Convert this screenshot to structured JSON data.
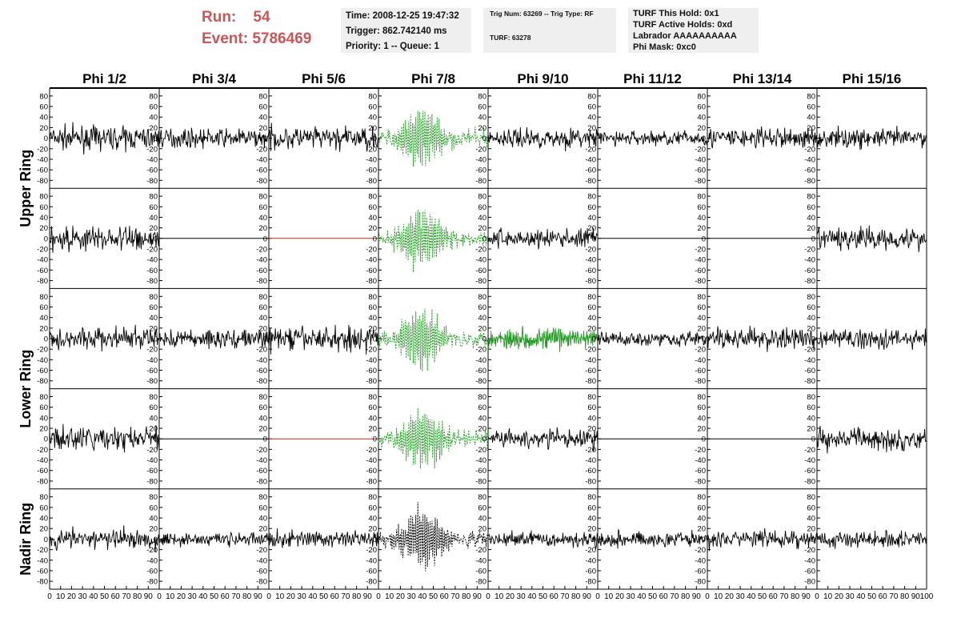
{
  "header": {
    "run_label": "Run:",
    "run_value": "54",
    "event_label": "Event:",
    "event_value": "5786469",
    "time_line": "Time: 2008-12-25 19:47:32",
    "trigger_line": "Trigger: 862.742140 ms",
    "priority_line": "Priority: 1 -- Queue: 1",
    "trig_line": "Trig Num: 63269 -- Trig Type: RF",
    "turf_line": "TURF: 63278",
    "turf_hold_line": "TURF This Hold: 0x1",
    "turf_active_line": "TURF Active Holds: 0xd",
    "labrador_line": "Labrador AAAAAAAAAA",
    "phi_mask_line": "Phi Mask: 0xc0"
  },
  "colors": {
    "run_text": "#cc5555",
    "info_bg": "#efefef",
    "trace_default": "#000000",
    "trace_green": "#229922",
    "trace_red": "#cc2222"
  },
  "chart_data": {
    "type": "line",
    "columns": [
      "Phi 1/2",
      "Phi 3/4",
      "Phi 5/6",
      "Phi 7/8",
      "Phi 9/10",
      "Phi 11/12",
      "Phi 13/14",
      "Phi 15/16"
    ],
    "rows": [
      "Upper Ring",
      "Lower Ring",
      "Nadir Ring"
    ],
    "yticks": [
      "80",
      "60",
      "40",
      "20",
      "0",
      "-20",
      "-40",
      "-60",
      "-80"
    ],
    "ytick_values": [
      80,
      60,
      40,
      20,
      0,
      -20,
      -40,
      -60,
      -80
    ],
    "xticks": [
      "0",
      "10",
      "20",
      "30",
      "40",
      "50",
      "60",
      "70",
      "80",
      "90",
      "100"
    ],
    "xtick_values": [
      0,
      10,
      20,
      30,
      40,
      50,
      60,
      70,
      80,
      90,
      100
    ],
    "xlim": [
      0,
      100
    ],
    "ylim": [
      -95,
      95
    ],
    "panels_rows": 5,
    "panels_cols": 8,
    "panels": [
      [
        "noise",
        "noise",
        "noise",
        "pulse",
        "noise",
        "noise",
        "noise",
        "noise"
      ],
      [
        "noise",
        "flat",
        "flat",
        "pulse",
        "noise",
        "flat",
        "flat",
        "noise"
      ],
      [
        "noise",
        "noise",
        "noise",
        "pulse",
        "dense",
        "noise",
        "noise",
        "noise"
      ],
      [
        "noise",
        "flat",
        "flat",
        "pulse",
        "noise",
        "flat",
        "flat",
        "noise"
      ],
      [
        "noise",
        "noise",
        "noise",
        "pulse",
        "noise",
        "noise",
        "noise",
        "noise"
      ]
    ],
    "panel_colors": [
      [
        "black",
        "black",
        "black",
        "green",
        "black",
        "black",
        "black",
        "black"
      ],
      [
        "black",
        "black",
        "red",
        "green",
        "black",
        "black",
        "black",
        "black"
      ],
      [
        "black",
        "black",
        "black",
        "green",
        "green",
        "black",
        "black",
        "black"
      ],
      [
        "black",
        "black",
        "red",
        "green",
        "black",
        "black",
        "black",
        "black"
      ],
      [
        "black",
        "black",
        "black",
        "black",
        "black",
        "black",
        "black",
        "black"
      ]
    ],
    "panel_dashed": [
      [
        false,
        false,
        false,
        true,
        false,
        false,
        false,
        false
      ],
      [
        false,
        false,
        false,
        true,
        false,
        false,
        false,
        false
      ],
      [
        false,
        false,
        false,
        true,
        false,
        false,
        false,
        false
      ],
      [
        false,
        false,
        false,
        true,
        false,
        false,
        false,
        false
      ],
      [
        false,
        false,
        false,
        true,
        false,
        false,
        false,
        false
      ]
    ],
    "panel_amplitude": [
      [
        15,
        12,
        15,
        0,
        13,
        10,
        14,
        13
      ],
      [
        17,
        0,
        0,
        0,
        13,
        0,
        0,
        15
      ],
      [
        15,
        13,
        16,
        0,
        14,
        10,
        14,
        13
      ],
      [
        16,
        0,
        0,
        0,
        13,
        0,
        0,
        15
      ],
      [
        14,
        9,
        11,
        0,
        10,
        10,
        12,
        12
      ]
    ],
    "pulse_center": 40,
    "pulse_peak": 55,
    "grid": false,
    "legend": "none"
  }
}
